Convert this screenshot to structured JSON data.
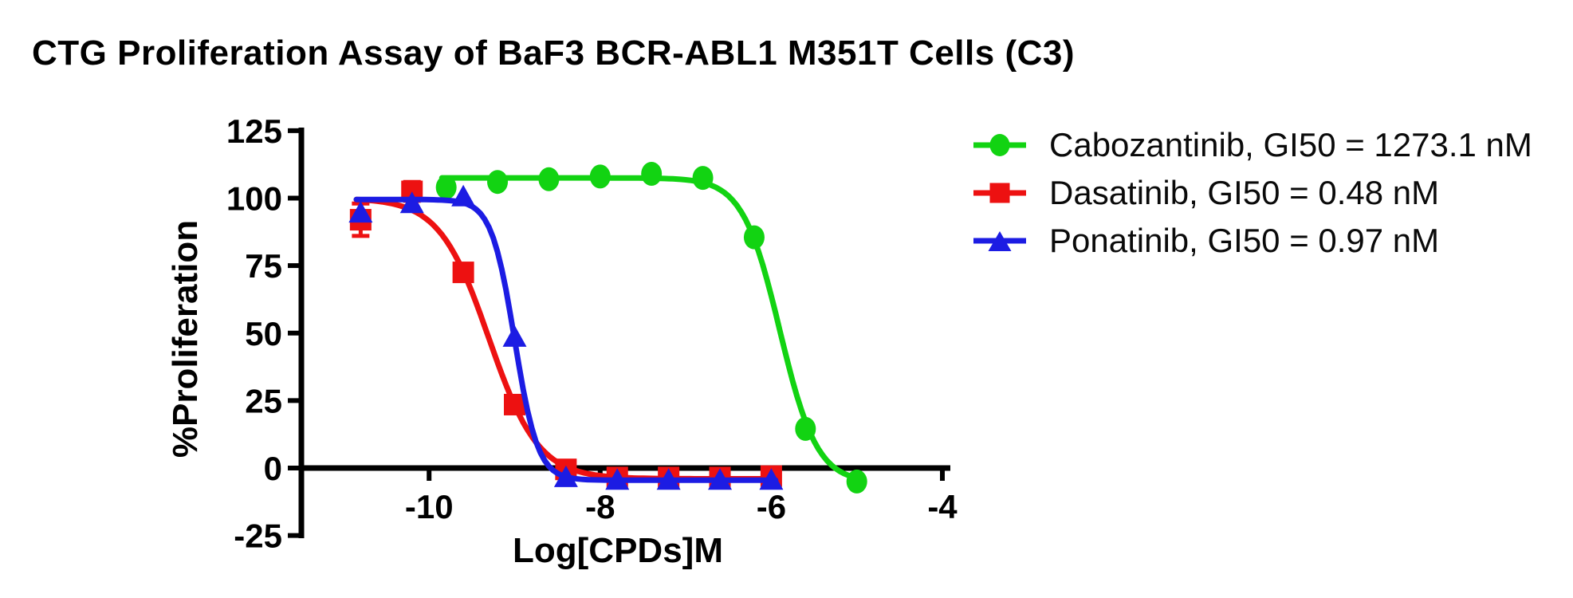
{
  "chart_data": {
    "type": "line",
    "title": "CTG Proliferation Assay of BaF3 BCR-ABL1 M351T Cells (C3)",
    "xlabel": "Log[CPDs]M",
    "ylabel": "%Proliferation",
    "xlim": [
      -11.5,
      -3.9
    ],
    "ylim": [
      -25,
      125
    ],
    "grid": false,
    "legend_position": "right",
    "axis_color": "#000000",
    "background_color": "#FFFFFF",
    "x_ticks": [
      -10,
      -8,
      -6,
      -4
    ],
    "y_ticks": [
      125,
      100,
      75,
      50,
      25,
      0,
      -25
    ],
    "x_tick_labels": [
      "-10",
      "-8",
      "-6",
      "-4"
    ],
    "y_tick_labels": [
      "125",
      "100",
      "75",
      "50",
      "25",
      "0",
      "-25"
    ],
    "series": [
      {
        "name": "Cabozantinib",
        "gi50_nM": 1273.1,
        "legend_label": "Cabozantinib, GI50 = 1273.1 nM",
        "color": "#12D312",
        "marker": "circle",
        "x": [
          -9.8,
          -9.2,
          -8.6,
          -8.0,
          -7.4,
          -6.8,
          -6.2,
          -5.6,
          -5.0
        ],
        "y": [
          104,
          106,
          107,
          108,
          109,
          107.5,
          85.5,
          14.5,
          -5
        ],
        "err": [
          0,
          0,
          0,
          0,
          0,
          0,
          0,
          0,
          0
        ],
        "fit": {
          "top": 107.5,
          "bottom": -5.5,
          "logec50": -5.9,
          "hill": 2.0,
          "range": [
            -9.85,
            -4.95
          ]
        }
      },
      {
        "name": "Dasatinib",
        "gi50_nM": 0.48,
        "legend_label": "Dasatinib, GI50 = 0.48 nM",
        "color": "#ED1111",
        "marker": "square",
        "x": [
          -10.8,
          -10.2,
          -9.6,
          -9.0,
          -8.4,
          -7.8,
          -7.2,
          -6.6,
          -6.0
        ],
        "y": [
          92,
          102.5,
          72.5,
          23.5,
          -0.5,
          -3.5,
          -3.5,
          -3.5,
          -3
        ],
        "err": [
          6,
          3.5,
          0,
          0,
          0,
          0,
          0,
          0,
          0
        ],
        "fit": {
          "top": 100,
          "bottom": -4,
          "logec50": -9.3,
          "hill": 1.5,
          "range": [
            -10.85,
            -5.95
          ]
        }
      },
      {
        "name": "Ponatinib",
        "gi50_nM": 0.97,
        "legend_label": "Ponatinib, GI50 = 0.97 nM",
        "color": "#1C1CE3",
        "marker": "triangle",
        "x": [
          -10.8,
          -10.2,
          -9.6,
          -9.0,
          -8.4,
          -7.8,
          -7.2,
          -6.6,
          -6.0
        ],
        "y": [
          94.5,
          98,
          100.5,
          48.5,
          -3.5,
          -4.5,
          -4.5,
          -4.5,
          -4.5
        ],
        "err": [
          0,
          0,
          0,
          0,
          0,
          0,
          0,
          0,
          0
        ],
        "fit": {
          "top": 99.5,
          "bottom": -4.5,
          "logec50": -9.0,
          "hill": 3.2,
          "range": [
            -10.85,
            -5.95
          ]
        }
      }
    ]
  }
}
